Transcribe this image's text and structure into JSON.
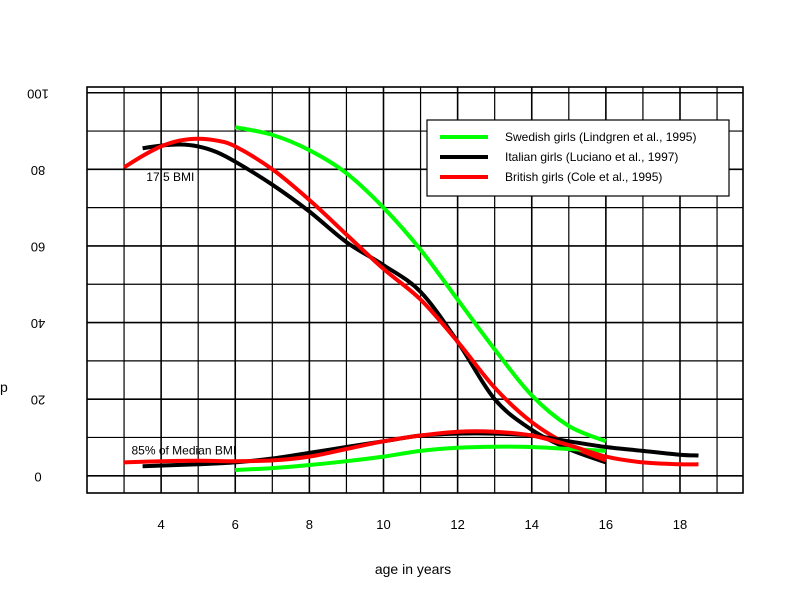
{
  "chart_data": {
    "type": "line",
    "xlabel": "age in years",
    "ylabel": "p",
    "xlim": [
      2.0,
      19.7
    ],
    "ylim": [
      -4.5,
      101.5
    ],
    "x_ticks": [
      4,
      6,
      8,
      10,
      12,
      14,
      16,
      18
    ],
    "y_ticks": [
      0,
      20,
      40,
      60,
      80,
      100
    ],
    "grid": true,
    "legend_position": "top-right",
    "annotations": [
      {
        "text": "17.5 BMI",
        "x": 3.6,
        "y": 77
      },
      {
        "text": "85% of Median BMI",
        "x": 3.2,
        "y": 5.5
      }
    ],
    "series": [
      {
        "name": "Swedish girls (Lindgren et al., 1995)",
        "color": "#00ff00",
        "group": "17.5 BMI",
        "x": [
          6,
          7,
          8,
          9,
          10,
          11,
          12,
          13,
          14,
          15,
          16
        ],
        "y": [
          91,
          89,
          85,
          79,
          70,
          59,
          46,
          33,
          21,
          13,
          9
        ]
      },
      {
        "name": "Italian girls (Luciano et al., 1997)",
        "color": "#000000",
        "group": "17.5 BMI",
        "x": [
          3.5,
          4,
          4.5,
          5,
          5.5,
          6,
          7,
          8,
          9,
          10,
          11,
          12,
          13,
          14,
          15,
          16
        ],
        "y": [
          85.5,
          86.2,
          86.5,
          86,
          84.5,
          82,
          76,
          69,
          61,
          55,
          48,
          35,
          20,
          12,
          7,
          3.5
        ]
      },
      {
        "name": "British girls (Cole et al., 1995)",
        "color": "#ff0000",
        "group": "17.5 BMI",
        "x": [
          3,
          3.5,
          4,
          4.5,
          5,
          5.5,
          6,
          7,
          8,
          9,
          10,
          11,
          12,
          13,
          14,
          15,
          16
        ],
        "y": [
          80.5,
          83.5,
          86,
          87.5,
          88,
          87.5,
          86,
          80,
          72,
          63,
          54,
          46,
          35,
          23,
          14,
          8,
          4
        ]
      },
      {
        "name": "Swedish girls (Lindgren et al., 1995)",
        "color": "#00ff00",
        "group": "85% of Median BMI",
        "x": [
          6,
          7,
          8,
          9,
          10,
          11,
          12,
          13,
          14,
          15,
          16
        ],
        "y": [
          1.5,
          2,
          2.8,
          3.8,
          5,
          6.5,
          7.3,
          7.6,
          7.5,
          7,
          6.5
        ]
      },
      {
        "name": "Italian girls (Luciano et al., 1997)",
        "color": "#000000",
        "group": "85% of Median BMI",
        "x": [
          3.5,
          5,
          6,
          7,
          8,
          9,
          10,
          11,
          12,
          13,
          14,
          15,
          16,
          17,
          18,
          18.5
        ],
        "y": [
          2.5,
          3,
          3.5,
          4.5,
          6,
          7.5,
          9,
          10.5,
          11,
          11,
          10.5,
          9,
          7.5,
          6.5,
          5.5,
          5.3
        ]
      },
      {
        "name": "British girls (Cole et al., 1995)",
        "color": "#ff0000",
        "group": "85% of Median BMI",
        "x": [
          3,
          4,
          5,
          6,
          7,
          8,
          9,
          10,
          11,
          12,
          13,
          14,
          15,
          16,
          17,
          18,
          18.5
        ],
        "y": [
          3.5,
          3.8,
          3.9,
          3.8,
          4,
          5,
          7,
          9,
          10.5,
          11.5,
          11.5,
          10.5,
          8,
          5,
          3.5,
          3,
          3
        ]
      }
    ],
    "legend": [
      {
        "label": "Swedish girls (Lindgren et al., 1995)",
        "color": "#00ff00"
      },
      {
        "label": "Italian girls (Luciano et al., 1997)",
        "color": "#000000"
      },
      {
        "label": "British girls (Cole et al., 1995)",
        "color": "#ff0000"
      }
    ]
  }
}
